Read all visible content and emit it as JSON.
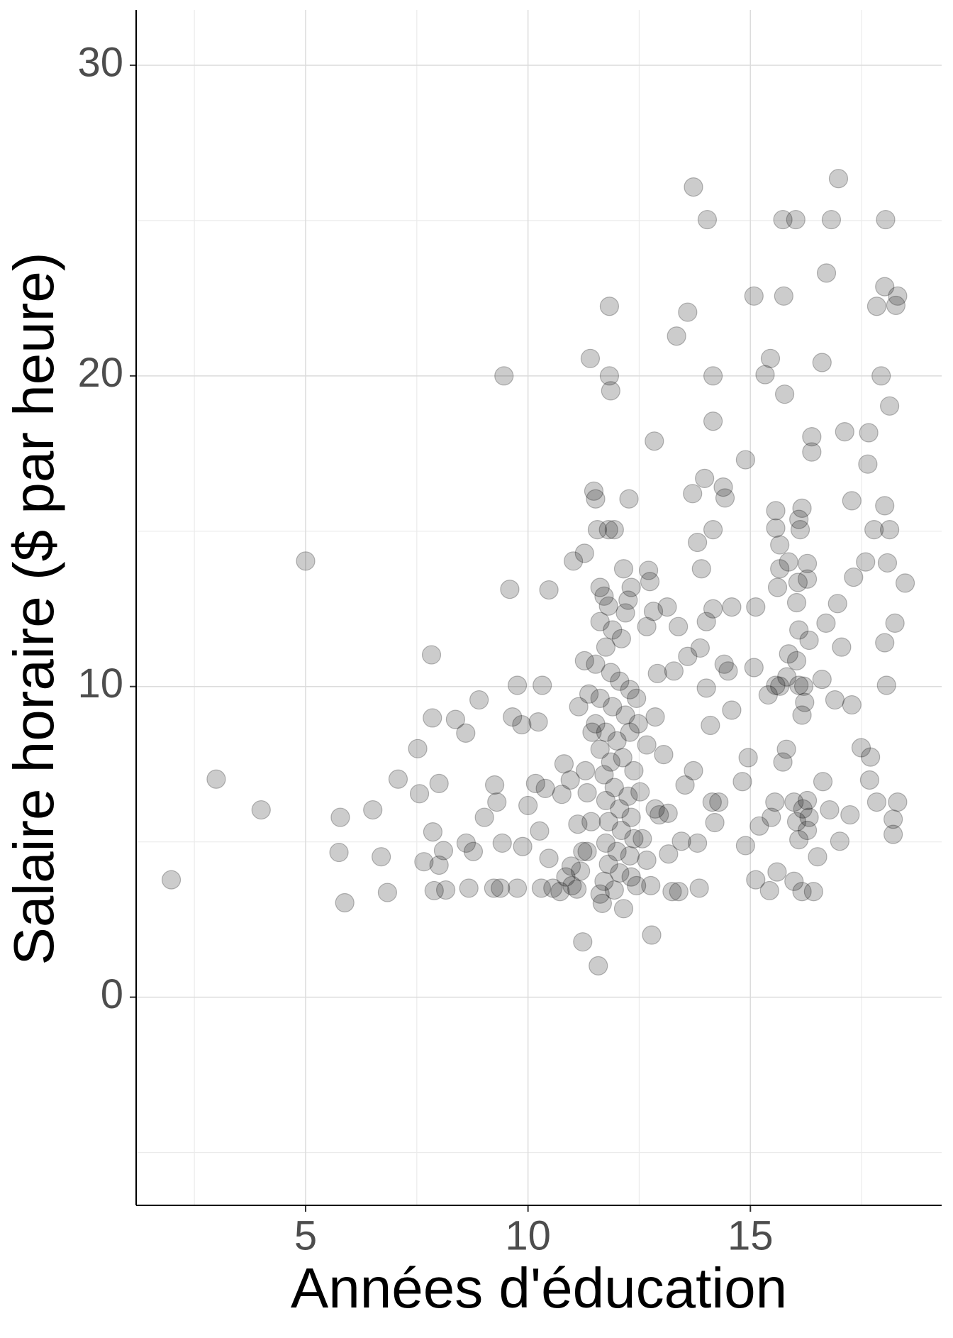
{
  "chart_data": {
    "type": "scatter",
    "xlabel": "Années d'éducation",
    "ylabel": "Salaire horaire ($ par heure)",
    "xlim": [
      1.19,
      19.3
    ],
    "ylim": [
      -6.7,
      31.78
    ],
    "xticks": [
      5,
      10,
      15
    ],
    "yticks": [
      0,
      10,
      20,
      30
    ],
    "xminor": [
      2.5,
      7.5,
      12.5,
      17.5
    ],
    "yminor": [
      -5,
      5,
      15,
      25
    ],
    "grid": true,
    "color": "#000000",
    "opacity": 0.2,
    "x": [
      1.98,
      2.99,
      4.0,
      5.0,
      5.78,
      5.75,
      5.88,
      6.51,
      6.7,
      6.84,
      7.08,
      7.52,
      7.56,
      7.66,
      7.83,
      7.85,
      7.86,
      8.0,
      8.0,
      7.89,
      8.1,
      8.15,
      8.37,
      8.6,
      8.61,
      8.67,
      8.77,
      8.9,
      9.02,
      9.25,
      9.3,
      9.23,
      9.38,
      9.42,
      9.46,
      9.59,
      9.65,
      9.76,
      9.76,
      9.86,
      9.88,
      10.0,
      10.17,
      10.23,
      10.26,
      10.3,
      10.32,
      10.39,
      10.47,
      10.47,
      10.56,
      10.72,
      10.76,
      10.81,
      10.95,
      10.97,
      11.02,
      11.1,
      11.12,
      11.18,
      11.23,
      11.27,
      11.27,
      11.33,
      11.4,
      11.48,
      11.52,
      11.58,
      11.67,
      11.83,
      11.83,
      11.86,
      12.15,
      12.27,
      12.78,
      12.84,
      13.34,
      13.59,
      13.72,
      14.03,
      14.16,
      14.16,
      14.89,
      15.08,
      15.33,
      15.45,
      15.73,
      15.75,
      15.77,
      16.02,
      16.38,
      16.38,
      16.61,
      16.71,
      16.82,
      16.98,
      17.12,
      17.28,
      17.64,
      17.66,
      17.84,
      17.94,
      18.02,
      18.04,
      18.13,
      18.31,
      18.27,
      18.48,
      18.25,
      18.08,
      18.02,
      18.13,
      17.78,
      17.59,
      17.32,
      16.96,
      17.05,
      17.28,
      16.9,
      16.7,
      16.61,
      16.63,
      16.78,
      16.51,
      17.01,
      17.24,
      17.7,
      17.68,
      17.84,
      18.06,
      18.02,
      18.21,
      18.31,
      18.21,
      17.49,
      16.42,
      16.16,
      15.98,
      15.6,
      15.43,
      15.12,
      14.89,
      15.2,
      15.47,
      15.55,
      15.73,
      15.81,
      15.66,
      15.57,
      15.4,
      15.08,
      14.95,
      14.82,
      14.58,
      14.5,
      14.41,
      14.29,
      14.2,
      14.14,
      14.1,
      14.01,
      13.87,
      13.59,
      13.38,
      13.28,
      13.53,
      13.72,
      13.81,
      13.85,
      13.39,
      13.24,
      13.16,
      13.45,
      12.95,
      13.05,
      12.86,
      12.91,
      12.67,
      13.13,
      12.82,
      12.74,
      12.71,
      13.9,
      13.81,
      14.16,
      13.97,
      13.7,
      14.43,
      14.39,
      14.16,
      14.01,
      14.58,
      15.12,
      15.57,
      15.57,
      15.66,
      15.66,
      15.61,
      15.86,
      16.09,
      16.16,
      16.12,
      16.07,
      16.28,
      16.28,
      16.04,
      16.09,
      16.32,
      16.04,
      15.86,
      15.82,
      16.09,
      16.22,
      16.16,
      16.2,
      16.28,
      16.18,
      16.04,
      16.09,
      16.32,
      16.28,
      15.98,
      11.62,
      11.71,
      11.81,
      11.62,
      11.9,
      11.75,
      12.1,
      12.25,
      12.19,
      12.32,
      12.15,
      11.94,
      11.81,
      11.56,
      11.52,
      11.86,
      12.06,
      12.29,
      11.62,
      11.9,
      12.19,
      12.44,
      11.52,
      11.75,
      12.0,
      12.29,
      11.62,
      11.86,
      12.13,
      12.38,
      11.71,
      11.94,
      12.25,
      11.75,
      12.06,
      12.32,
      11.81,
      12.1,
      12.38,
      11.75,
      12.0,
      12.29,
      11.81,
      12.06,
      12.32,
      11.71,
      11.94,
      11.62,
      12.44,
      11.33,
      11.42,
      11.29,
      11.44,
      11.37,
      12.52,
      12.57,
      12.67,
      12.76,
      12.86,
      13.15,
      12.67,
      12.48,
      11.14,
      10.99,
      10.85,
      11.23
    ],
    "y": [
      3.78,
      7.02,
      6.03,
      14.04,
      5.79,
      4.66,
      3.04,
      6.03,
      4.52,
      3.37,
      7.02,
      8.0,
      6.55,
      4.36,
      11.02,
      8.99,
      5.32,
      6.88,
      4.25,
      3.43,
      4.72,
      3.45,
      8.94,
      8.5,
      4.96,
      3.51,
      4.69,
      9.57,
      5.79,
      6.83,
      6.28,
      3.51,
      3.51,
      4.96,
      20.0,
      13.13,
      9.02,
      10.04,
      3.51,
      8.77,
      4.85,
      6.17,
      6.88,
      8.86,
      5.35,
      3.51,
      10.04,
      6.72,
      13.11,
      4.47,
      3.51,
      3.4,
      6.53,
      7.51,
      6.99,
      4.22,
      14.04,
      3.48,
      5.57,
      4.06,
      1.78,
      14.29,
      10.83,
      6.58,
      20.56,
      16.29,
      16.04,
      1.01,
      3.02,
      22.24,
      20.0,
      19.52,
      2.85,
      16.04,
      2.0,
      17.9,
      21.28,
      22.05,
      26.08,
      25.03,
      20.0,
      18.54,
      17.3,
      22.57,
      20.04,
      20.56,
      25.03,
      22.57,
      19.41,
      25.03,
      18.04,
      17.55,
      20.43,
      23.31,
      25.03,
      26.35,
      18.2,
      15.98,
      17.16,
      18.17,
      22.24,
      20.0,
      22.87,
      25.03,
      19.03,
      22.57,
      22.27,
      13.33,
      12.04,
      13.98,
      15.82,
      15.05,
      15.05,
      14.01,
      13.52,
      12.67,
      11.27,
      9.41,
      9.57,
      12.04,
      10.23,
      6.94,
      6.03,
      4.52,
      5.02,
      5.87,
      7.73,
      6.99,
      6.28,
      10.04,
      11.41,
      5.24,
      6.28,
      5.73,
      8.03,
      3.4,
      3.4,
      3.73,
      4.03,
      3.43,
      3.78,
      4.88,
      5.51,
      5.79,
      6.28,
      7.57,
      7.98,
      10.01,
      10.04,
      9.73,
      10.61,
      7.71,
      6.94,
      9.24,
      10.5,
      10.72,
      6.28,
      5.62,
      6.28,
      8.75,
      9.95,
      11.24,
      10.97,
      11.93,
      10.5,
      6.83,
      7.29,
      4.96,
      3.51,
      3.4,
      3.4,
      4.61,
      5.02,
      5.87,
      7.81,
      9.02,
      10.42,
      11.93,
      12.56,
      12.42,
      13.38,
      13.74,
      13.79,
      14.64,
      15.05,
      16.7,
      16.21,
      16.07,
      16.42,
      12.5,
      12.09,
      12.56,
      12.56,
      15.1,
      15.66,
      14.56,
      13.79,
      13.19,
      14.01,
      15.38,
      15.74,
      15.05,
      13.35,
      13.96,
      13.46,
      12.7,
      11.82,
      11.49,
      10.83,
      11.05,
      10.31,
      10.04,
      9.49,
      9.08,
      10.01,
      6.33,
      6.06,
      5.65,
      5.07,
      5.79,
      5.37,
      6.28,
      13.19,
      12.91,
      12.59,
      12.09,
      11.82,
      11.27,
      11.54,
      12.78,
      12.37,
      13.19,
      13.79,
      15.05,
      15.05,
      15.05,
      10.72,
      10.45,
      10.17,
      9.9,
      9.62,
      9.35,
      9.08,
      9.62,
      8.8,
      8.53,
      8.25,
      8.53,
      7.98,
      7.57,
      7.71,
      7.29,
      7.16,
      6.75,
      6.47,
      6.33,
      6.06,
      5.79,
      5.65,
      5.37,
      5.1,
      4.96,
      4.69,
      4.55,
      4.28,
      4.0,
      3.87,
      3.73,
      3.45,
      3.32,
      3.59,
      4.69,
      5.65,
      7.29,
      8.53,
      9.76,
      6.61,
      5.1,
      4.41,
      3.59,
      6.06,
      5.92,
      8.12,
      8.8,
      9.35,
      3.59,
      3.87,
      4.69
    ]
  }
}
